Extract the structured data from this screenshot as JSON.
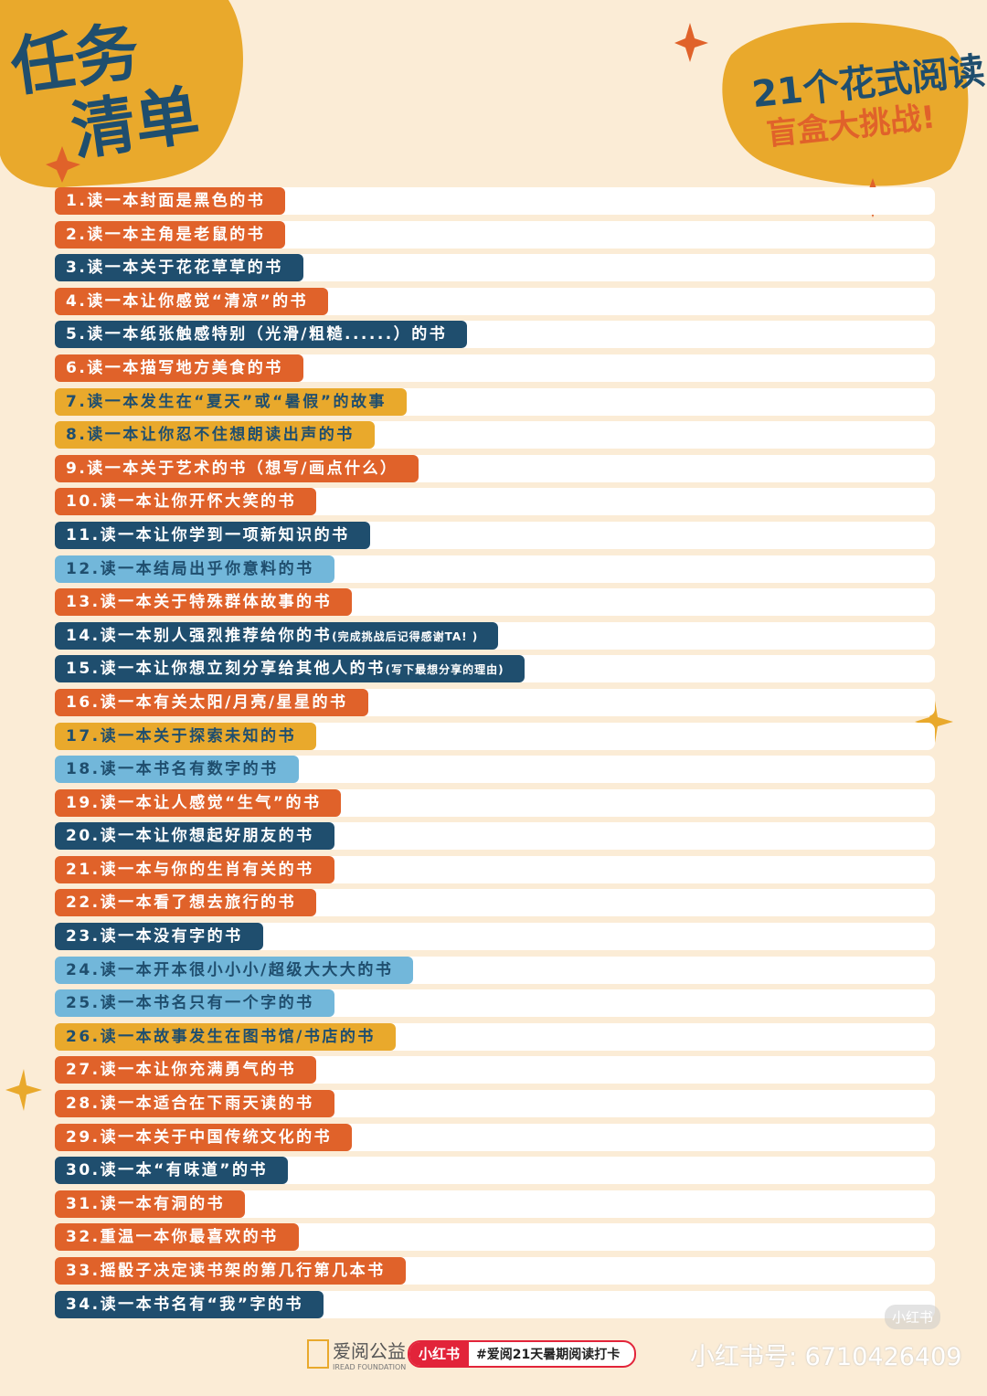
{
  "header": {
    "title_lines": [
      "任务",
      "清单"
    ],
    "badge_lines": [
      "21个花式阅读",
      "盲盒大挑战!"
    ]
  },
  "items": [
    {
      "text": "1.读一本封面是黑色的书",
      "color": "#e0622a"
    },
    {
      "text": "2.读一本主角是老鼠的书",
      "color": "#e0622a"
    },
    {
      "text": "3.读一本关于花花草草的书",
      "color": "#1f4e6e"
    },
    {
      "text": "4.读一本让你感觉“清凉”的书",
      "color": "#e0622a"
    },
    {
      "text": "5.读一本纸张触感特别（光滑/粗糙......）的书",
      "color": "#1f4e6e"
    },
    {
      "text": "6.读一本描写地方美食的书",
      "color": "#e0622a"
    },
    {
      "text": "7.读一本发生在“夏天”或“暑假”的故事",
      "color": "#e9a92c"
    },
    {
      "text": "8.读一本让你忍不住想朗读出声的书",
      "color": "#e9a92c"
    },
    {
      "text": "9.读一本关于艺术的书（想写/画点什么）",
      "color": "#e0622a"
    },
    {
      "text": "10.读一本让你开怀大笑的书",
      "color": "#e0622a"
    },
    {
      "text": "11.读一本让你学到一项新知识的书",
      "color": "#1f4e6e"
    },
    {
      "text": "12.读一本结局出乎你意料的书",
      "color": "#72b7da"
    },
    {
      "text": "13.读一本关于特殊群体故事的书",
      "color": "#e0622a"
    },
    {
      "text": "14.读一本别人强烈推荐给你的书",
      "note": "(完成挑战后记得感谢TA! )",
      "color": "#1f4e6e"
    },
    {
      "text": "15.读一本让你想立刻分享给其他人的书",
      "note": "(写下最想分享的理由)",
      "color": "#1f4e6e"
    },
    {
      "text": "16.读一本有关太阳/月亮/星星的书",
      "color": "#e0622a"
    },
    {
      "text": "17.读一本关于探索未知的书",
      "color": "#e9a92c"
    },
    {
      "text": "18.读一本书名有数字的书",
      "color": "#72b7da"
    },
    {
      "text": "19.读一本让人感觉“生气”的书",
      "color": "#e0622a"
    },
    {
      "text": "20.读一本让你想起好朋友的书",
      "color": "#1f4e6e"
    },
    {
      "text": "21.读一本与你的生肖有关的书",
      "color": "#e0622a"
    },
    {
      "text": "22.读一本看了想去旅行的书",
      "color": "#e0622a"
    },
    {
      "text": "23.读一本没有字的书",
      "color": "#1f4e6e"
    },
    {
      "text": "24.读一本开本很小小小/超级大大大的书",
      "color": "#72b7da"
    },
    {
      "text": "25.读一本书名只有一个字的书",
      "color": "#72b7da"
    },
    {
      "text": "26.读一本故事发生在图书馆/书店的书",
      "color": "#e9a92c"
    },
    {
      "text": "27.读一本让你充满勇气的书",
      "color": "#e0622a"
    },
    {
      "text": "28.读一本适合在下雨天读的书",
      "color": "#e0622a"
    },
    {
      "text": "29.读一本关于中国传统文化的书",
      "color": "#e0622a"
    },
    {
      "text": "30.读一本“有味道”的书",
      "color": "#1f4e6e"
    },
    {
      "text": "31.读一本有洞的书",
      "color": "#e0622a"
    },
    {
      "text": "32.重温一本你最喜欢的书",
      "color": "#e0622a"
    },
    {
      "text": "33.摇骰子决定读书架的第几行第几本书",
      "color": "#e0622a"
    },
    {
      "text": "34.读一本书名有“我”字的书",
      "color": "#1f4e6e"
    }
  ],
  "footer": {
    "org": "爱阅公益",
    "org_en": "IREAD FOUNDATION",
    "app": "小红书",
    "hashtag": "#爱阅21天暑期阅读打卡",
    "account": "小红书号: 6710426409",
    "watermark": "小红书"
  }
}
